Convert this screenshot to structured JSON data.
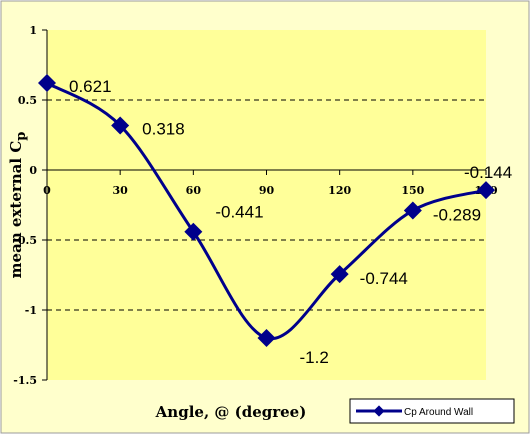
{
  "chart_data": {
    "type": "line",
    "smooth": true,
    "x": [
      0,
      30,
      60,
      90,
      120,
      150,
      180
    ],
    "series": [
      {
        "name": "Cp Around Wall",
        "values": [
          0.621,
          0.318,
          -0.441,
          -1.2,
          -0.744,
          -0.289,
          -0.144
        ],
        "data_labels": [
          "0.621",
          "0.318",
          "-0.441",
          "-1.2",
          "-0.744",
          "-0.289",
          "-0.144"
        ],
        "color": "#00008B",
        "marker": "diamond"
      }
    ],
    "x_ticks": [
      "0",
      "30",
      "60",
      "90",
      "120",
      "150",
      "180"
    ],
    "y_ticks": [
      "1",
      "0.5",
      "0",
      "-0.5",
      "-1",
      "-1.5"
    ],
    "y_tick_values": [
      1,
      0.5,
      0,
      -0.5,
      -1,
      -1.5
    ],
    "xlabel": "Angle, @ (degree)",
    "ylabel_main": "mean external C",
    "ylabel_sub": "p",
    "xlim": [
      0,
      180
    ],
    "ylim": [
      -1.5,
      1
    ],
    "grid": "horizontal dashed",
    "legend_position": "bottom-right",
    "colors": {
      "chart_background": "#FFFFCC",
      "plot_background": "#FFFF99",
      "border": "#9B9B9B",
      "grid": "#000000",
      "series": "#00008B"
    }
  }
}
